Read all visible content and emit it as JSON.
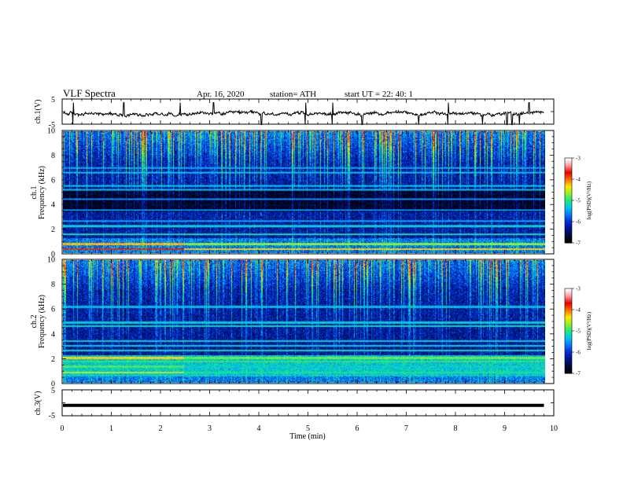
{
  "header": {
    "title": "VLF  Spectra",
    "date": "Apr. 16, 2020",
    "station": "station= ATH",
    "start": "start  UT  =    22: 40: 1"
  },
  "colors": {
    "spectrum": [
      "#000000",
      "#000a3c",
      "#001296",
      "#0032d2",
      "#0a7aff",
      "#00c8e6",
      "#1ee87a",
      "#96f028",
      "#ffe600",
      "#ff6a00",
      "#e60000",
      "#ff9a9a",
      "#ffffff"
    ]
  },
  "chart_data": [
    {
      "type": "line",
      "ylabel": "ch.1(V)",
      "yticks": [
        "5",
        "-5"
      ],
      "ylim": [
        -5,
        5
      ],
      "xlim": [
        0,
        10
      ],
      "data_extent_min": 9.8,
      "baseline_V": -0.8,
      "spike_times_min": [
        0.22,
        1.25,
        2.4,
        3.08,
        4.05,
        4.95,
        5.5,
        6.1,
        7.25,
        7.85,
        8.55,
        9.05,
        9.15,
        9.3,
        9.5
      ]
    },
    {
      "type": "heatmap",
      "ylabel": "ch.1\nFrequency (kHz)",
      "yticks": [
        "10",
        "8",
        "6",
        "4",
        "2",
        "0"
      ],
      "ylim": [
        0,
        10
      ],
      "xlim": [
        0,
        10
      ],
      "data_extent_min": 9.8,
      "colorbar": {
        "label": "log(PSD)(V²/Hz)",
        "ticks": [
          "-3",
          "-4",
          "-5",
          "-6",
          "-7"
        ],
        "range": [
          -7,
          -3
        ]
      },
      "bands_kHz": [
        {
          "f": 0.3,
          "level": -3.8
        },
        {
          "f": 0.7,
          "level": -4.2
        },
        {
          "f": 1.5,
          "level": -5.2
        },
        {
          "f": 2.2,
          "level": -5.3
        },
        {
          "f": 2.6,
          "level": -5.5
        },
        {
          "f": 3.5,
          "level": -5.6
        },
        {
          "f": 4.4,
          "level": -5.6
        },
        {
          "f": 5.2,
          "level": -5.4
        },
        {
          "f": 5.5,
          "level": -5.3
        },
        {
          "f": 6.6,
          "level": -5.4
        },
        {
          "f": 7.0,
          "level": -5.5
        }
      ]
    },
    {
      "type": "heatmap",
      "ylabel": "ch.2\nFrequency (kHz)",
      "yticks": [
        "10",
        "8",
        "6",
        "4",
        "2",
        "0"
      ],
      "ylim": [
        0,
        10
      ],
      "xlim": [
        0,
        10
      ],
      "data_extent_min": 9.8,
      "colorbar": {
        "label": "log(PSD)(V²/Hz)",
        "ticks": [
          "-3",
          "-4",
          "-5",
          "-6",
          "-7"
        ],
        "range": [
          -7,
          -3
        ]
      },
      "bands_kHz": [
        {
          "f": 0.8,
          "level": -4.6
        },
        {
          "f": 1.3,
          "level": -4.9
        },
        {
          "f": 1.7,
          "level": -5.0
        },
        {
          "f": 2.0,
          "level": -4.3
        },
        {
          "f": 2.6,
          "level": -5.2
        },
        {
          "f": 3.0,
          "level": -5.3
        },
        {
          "f": 3.4,
          "level": -5.3
        },
        {
          "f": 4.6,
          "level": -5.2
        },
        {
          "f": 4.9,
          "level": -5.3
        },
        {
          "f": 6.2,
          "level": -5.4
        }
      ]
    },
    {
      "type": "line",
      "ylabel": "ch.3(V)",
      "yticks": [
        "5",
        "-5"
      ],
      "ylim": [
        -5,
        5
      ],
      "xlim": [
        0,
        10
      ],
      "data_extent_min": 9.8,
      "baseline_V": -1.0
    }
  ],
  "xaxis": {
    "label": "Time  (min)",
    "ticks": [
      "0",
      "1",
      "2",
      "3",
      "4",
      "5",
      "6",
      "7",
      "8",
      "9",
      "10"
    ]
  }
}
